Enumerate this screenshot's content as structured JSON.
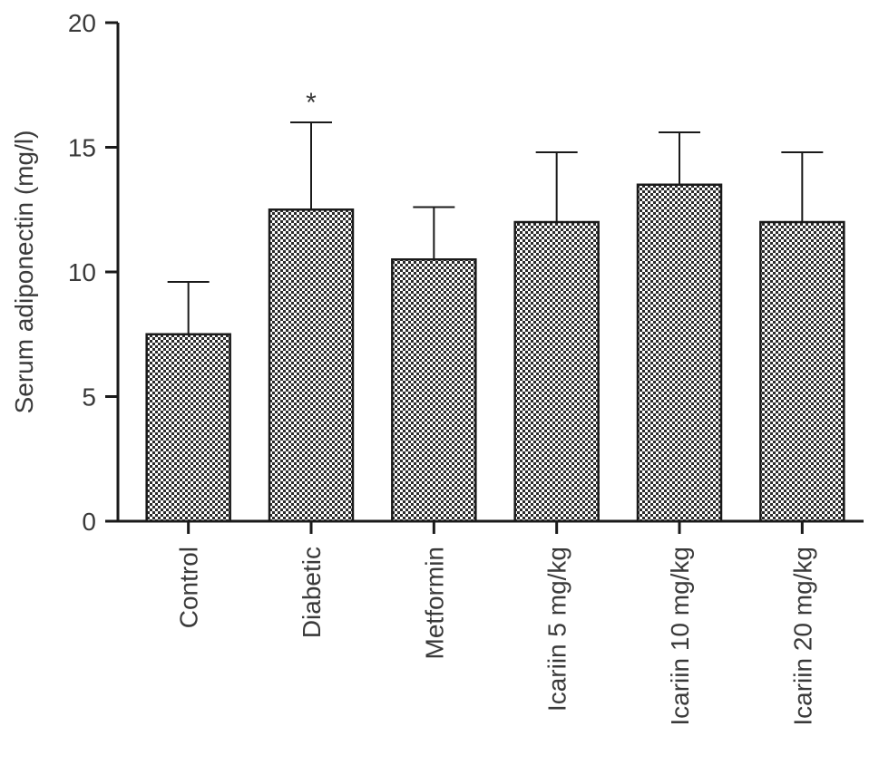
{
  "chart_data": {
    "type": "bar",
    "ylabel": "Serum adiponectin (mg/l)",
    "xlabel": "",
    "ylim": [
      0,
      20
    ],
    "yticks": [
      0,
      5,
      10,
      15,
      20
    ],
    "grid": false,
    "categories": [
      "Control",
      "Diabetic",
      "Metformin",
      "Icariin 5 mg/kg",
      "Icariin 10 mg/kg",
      "Icariin 20 mg/kg"
    ],
    "values": [
      7.5,
      12.5,
      10.5,
      12.0,
      13.5,
      12.0
    ],
    "error_upper": [
      9.6,
      16.0,
      12.6,
      14.8,
      15.6,
      14.8
    ],
    "annotations": [
      {
        "category": "Diabetic",
        "text": "*"
      }
    ],
    "bar_fill_pattern": "checkered",
    "colors": {
      "bar_dark": "#2a2a2a",
      "bar_light": "#ffffff",
      "axis": "#1a1a1a"
    }
  }
}
